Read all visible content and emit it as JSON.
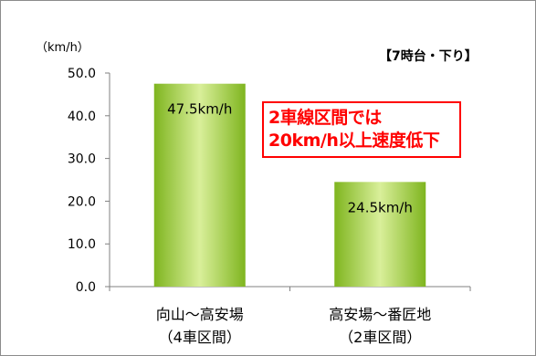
{
  "chart_data": {
    "type": "bar",
    "title": "",
    "subtitle": "【7時台・下り】",
    "ylabel": "",
    "y_unit_label": "（km/h）",
    "ylim": [
      0,
      50
    ],
    "yticks": [
      "0.0",
      "10.0",
      "20.0",
      "30.0",
      "40.0",
      "50.0"
    ],
    "categories": [
      {
        "line1": "向山～高安場",
        "line2": "（4車区間）"
      },
      {
        "line1": "高安場～番匠地",
        "line2": "（2車区間）"
      }
    ],
    "values": [
      47.5,
      24.5
    ],
    "data_labels": [
      "47.5km/h",
      "24.5km/h"
    ],
    "grid": false,
    "legend": "none",
    "bar_color": "#9acd32",
    "annotation": {
      "lines": [
        "2車線区間では",
        "20km/h以上速度低下"
      ],
      "color": "#ff0000"
    }
  }
}
